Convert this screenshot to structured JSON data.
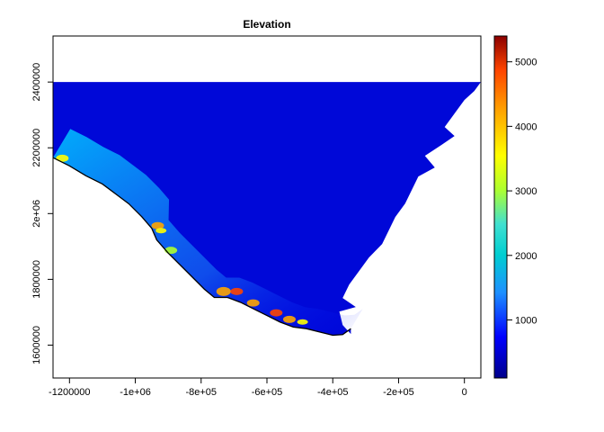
{
  "chart_data": {
    "type": "heatmap",
    "title": "Elevation",
    "xlabel": "",
    "ylabel": "",
    "xlim": [
      -1250000,
      50000
    ],
    "ylim": [
      1500000,
      2540000
    ],
    "x_ticks": [
      {
        "value": -1200000,
        "label": "-1200000"
      },
      {
        "value": -1000000,
        "label": "-1e+06"
      },
      {
        "value": -800000,
        "label": "-8e+05"
      },
      {
        "value": -600000,
        "label": "-6e+05"
      },
      {
        "value": -400000,
        "label": "-4e+05"
      },
      {
        "value": -200000,
        "label": "-2e+05"
      },
      {
        "value": 0,
        "label": "0"
      }
    ],
    "y_ticks": [
      {
        "value": 1600000,
        "label": "1600000"
      },
      {
        "value": 1800000,
        "label": "1800000"
      },
      {
        "value": 2000000,
        "label": "2e+06"
      },
      {
        "value": 2200000,
        "label": "2200000"
      },
      {
        "value": 2400000,
        "label": "2400000"
      }
    ],
    "raster_extent": {
      "xmin": -1250000,
      "xmax": 50000,
      "ymin": 1630000,
      "ymax": 2400000
    },
    "coastline": [
      [
        -1250000,
        2170000
      ],
      [
        -1200000,
        2145000
      ],
      [
        -1150000,
        2115000
      ],
      [
        -1100000,
        2090000
      ],
      [
        -1060000,
        2060000
      ],
      [
        -1020000,
        2030000
      ],
      [
        -980000,
        1990000
      ],
      [
        -950000,
        1955000
      ],
      [
        -935000,
        1920000
      ],
      [
        -900000,
        1880000
      ],
      [
        -860000,
        1840000
      ],
      [
        -820000,
        1800000
      ],
      [
        -790000,
        1770000
      ],
      [
        -760000,
        1745000
      ],
      [
        -720000,
        1745000
      ],
      [
        -680000,
        1730000
      ],
      [
        -640000,
        1710000
      ],
      [
        -600000,
        1690000
      ],
      [
        -560000,
        1670000
      ],
      [
        -520000,
        1655000
      ],
      [
        -480000,
        1650000
      ],
      [
        -440000,
        1640000
      ],
      [
        -400000,
        1630000
      ],
      [
        -370000,
        1632000
      ],
      [
        -345000,
        1650000
      ]
    ],
    "colorbar": {
      "min": 100,
      "max": 5400,
      "ticks": [
        1000,
        2000,
        3000,
        4000,
        5000
      ],
      "tick_labels": [
        "1000",
        "2000",
        "3000",
        "4000",
        "5000"
      ],
      "colors": [
        "#00008B",
        "#0000FF",
        "#1E90FF",
        "#00BFFF",
        "#40E0D0",
        "#ADFF2F",
        "#FFFF00",
        "#FFA500",
        "#FF4500",
        "#B22222",
        "#8B0000"
      ]
    }
  }
}
